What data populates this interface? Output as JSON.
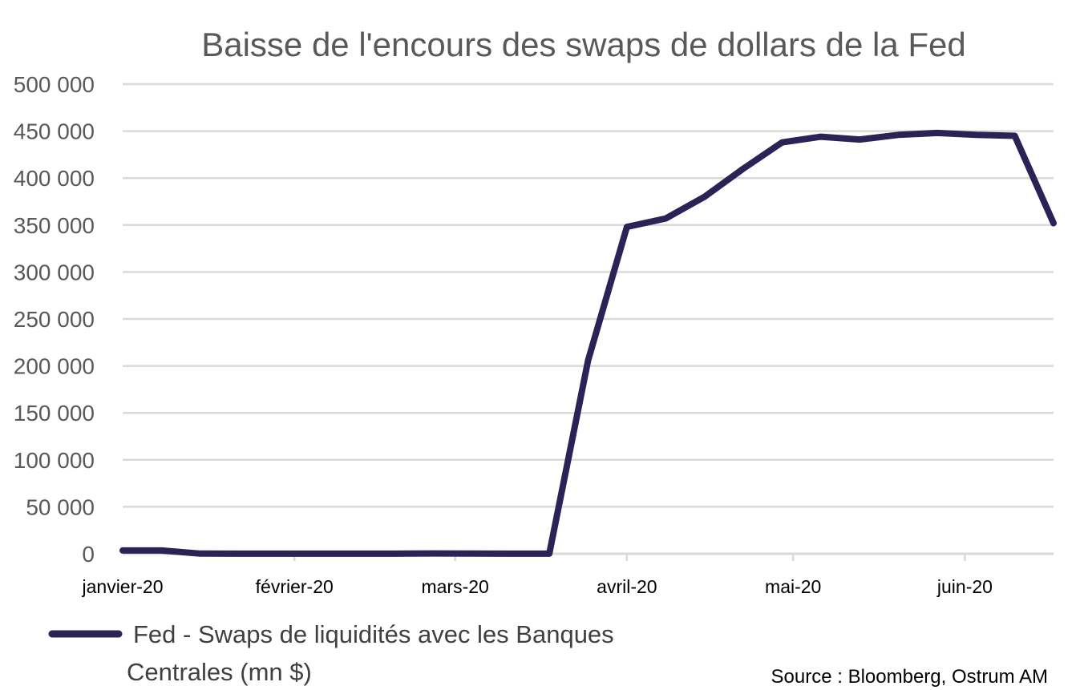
{
  "chart_data": {
    "type": "line",
    "title": "Baisse de l'encours des swaps de dollars de la Fed",
    "xlabel": "",
    "ylabel": "",
    "ylim": [
      0,
      500000
    ],
    "yticks": [
      0,
      50000,
      100000,
      150000,
      200000,
      250000,
      300000,
      350000,
      400000,
      450000,
      500000
    ],
    "ytick_labels": [
      "0",
      "50 000",
      "100 000",
      "150 000",
      "200 000",
      "250 000",
      "300 000",
      "350 000",
      "400 000",
      "450 000",
      "500 000"
    ],
    "xlim": [
      "2020-01-01",
      "2020-06-17"
    ],
    "xtick_dates": [
      "2020-01-01",
      "2020-02-01",
      "2020-03-01",
      "2020-04-01",
      "2020-05-01",
      "2020-06-01"
    ],
    "xtick_labels": [
      "janvier-20",
      "février-20",
      "mars-20",
      "avril-20",
      "mai-20",
      "juin-20"
    ],
    "grid": true,
    "legend_position": "bottom-left",
    "series": [
      {
        "name": "Fed - Swaps de liquidités avec les Banques Centrales (mn $)",
        "color": "#2a2456",
        "x": [
          "2020-01-01",
          "2020-01-08",
          "2020-01-15",
          "2020-01-22",
          "2020-01-29",
          "2020-02-05",
          "2020-02-12",
          "2020-02-19",
          "2020-02-26",
          "2020-03-04",
          "2020-03-11",
          "2020-03-18",
          "2020-03-25",
          "2020-04-01",
          "2020-04-08",
          "2020-04-15",
          "2020-04-22",
          "2020-04-29",
          "2020-05-06",
          "2020-05-13",
          "2020-05-20",
          "2020-05-27",
          "2020-06-03",
          "2020-06-10",
          "2020-06-17"
        ],
        "y": [
          3500,
          3500,
          200,
          50,
          50,
          50,
          50,
          50,
          300,
          200,
          50,
          50,
          206000,
          348000,
          357000,
          380000,
          410000,
          438000,
          444000,
          441000,
          446000,
          448000,
          446000,
          445000,
          352000
        ]
      }
    ]
  },
  "legend": {
    "line1": "Fed - Swaps de liquidités avec les Banques",
    "line2": "Centrales (mn $)"
  },
  "source": "Source : Bloomberg, Ostrum AM"
}
